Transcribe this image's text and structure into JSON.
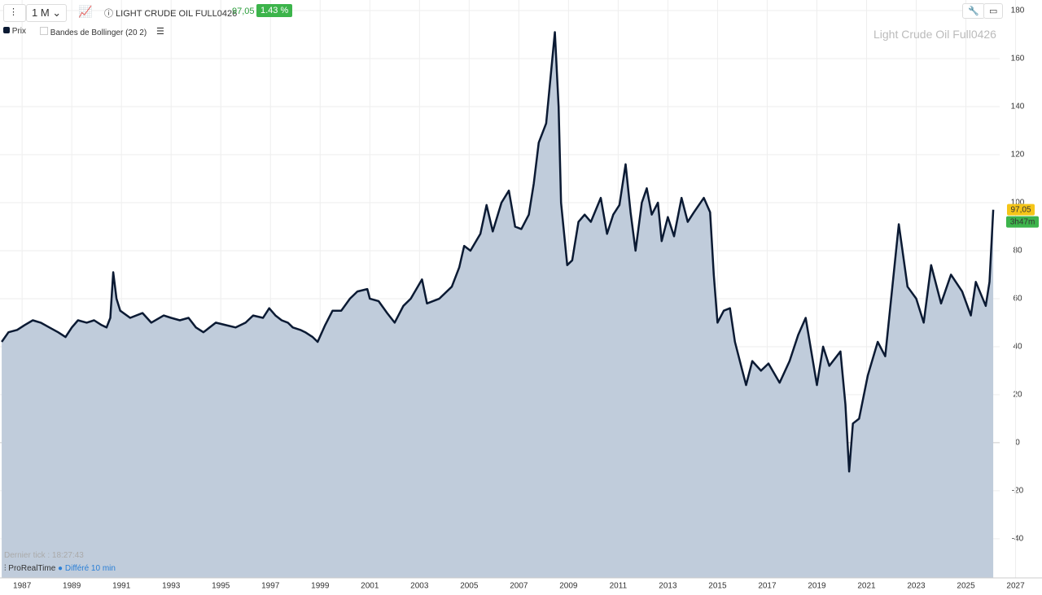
{
  "header": {
    "period": "1 M",
    "instrument": "LIGHT CRUDE OIL FULL0426",
    "price": "97,05",
    "change": "1.43 %"
  },
  "legend": {
    "indicator": "Bandes de Bollinger (20 2)"
  },
  "footer": {
    "last_tick": "Dernier tick : 18:27:43",
    "brand": "ProRealTime",
    "delay": "Différé 10 min"
  },
  "chart_data": {
    "type": "area",
    "title": "Light Crude Oil Full0426",
    "x": [
      1986.18,
      1986.45,
      1986.8,
      1987.1,
      1987.43,
      1987.75,
      1988.1,
      1988.45,
      1988.75,
      1989.0,
      1989.25,
      1989.6,
      1989.9,
      1990.2,
      1990.4,
      1990.55,
      1990.67,
      1990.8,
      1990.95,
      1991.35,
      1991.85,
      1992.2,
      1992.7,
      1993.0,
      1993.35,
      1993.7,
      1994.0,
      1994.3,
      1994.8,
      1995.2,
      1995.6,
      1996.0,
      1996.3,
      1996.7,
      1996.95,
      1997.2,
      1997.45,
      1997.7,
      1997.9,
      1998.2,
      1998.4,
      1998.7,
      1998.9,
      1999.2,
      1999.5,
      1999.85,
      2000.2,
      2000.5,
      2000.9,
      2001.0,
      2001.35,
      2001.7,
      2002.0,
      2002.35,
      2002.65,
      2003.1,
      2003.3,
      2003.8,
      2004.3,
      2004.6,
      2004.8,
      2005.05,
      2005.45,
      2005.7,
      2005.95,
      2006.3,
      2006.6,
      2006.85,
      2007.1,
      2007.4,
      2007.6,
      2007.8,
      2008.1,
      2008.35,
      2008.45,
      2008.6,
      2008.7,
      2008.95,
      2009.15,
      2009.4,
      2009.65,
      2009.9,
      2010.3,
      2010.55,
      2010.8,
      2011.05,
      2011.3,
      2011.5,
      2011.7,
      2011.95,
      2012.15,
      2012.35,
      2012.6,
      2012.75,
      2013.0,
      2013.25,
      2013.55,
      2013.8,
      2014.05,
      2014.45,
      2014.7,
      2014.85,
      2015.0,
      2015.25,
      2015.5,
      2015.7,
      2016.0,
      2016.15,
      2016.4,
      2016.75,
      2017.05,
      2017.5,
      2017.9,
      2018.25,
      2018.55,
      2019.0,
      2019.25,
      2019.5,
      2019.95,
      2020.15,
      2020.3,
      2020.45,
      2020.7,
      2021.05,
      2021.45,
      2021.75,
      2022.3,
      2022.65,
      2023.0,
      2023.3,
      2023.6,
      2024.0,
      2024.4,
      2024.85,
      2025.2,
      2025.4,
      2025.8,
      2025.95,
      2026.1
    ],
    "series": [
      {
        "name": "Prix",
        "color": "#0b1a33",
        "fill": "#c0ccdb",
        "values": [
          42,
          46,
          47,
          49,
          51,
          50,
          48,
          46,
          44,
          48,
          51,
          50,
          51,
          49,
          48,
          52,
          71,
          60,
          55,
          52,
          54,
          50,
          53,
          52,
          51,
          52,
          48,
          46,
          50,
          49,
          48,
          50,
          53,
          52,
          56,
          53,
          51,
          50,
          48,
          47,
          46,
          44,
          42,
          49,
          55,
          55,
          60,
          63,
          64,
          60,
          59,
          54,
          50,
          57,
          60,
          68,
          58,
          60,
          65,
          73,
          82,
          80,
          87,
          99,
          88,
          100,
          105,
          90,
          89,
          95,
          108,
          125,
          133,
          160,
          171,
          140,
          100,
          74,
          76,
          92,
          95,
          92,
          102,
          87,
          95,
          99,
          116,
          96,
          80,
          100,
          106,
          95,
          100,
          84,
          94,
          86,
          102,
          92,
          96,
          102,
          96,
          70,
          50,
          55,
          56,
          42,
          30,
          24,
          34,
          30,
          33,
          25,
          34,
          45,
          52,
          24,
          40,
          32,
          38,
          16,
          -12,
          8,
          10,
          28,
          42,
          36,
          91,
          65,
          60,
          50,
          74,
          58,
          70,
          63,
          53,
          67,
          57,
          67,
          97.05
        ]
      }
    ],
    "price_badge": {
      "value": 97.05,
      "label": "97,05"
    },
    "timer": "3h47m",
    "xlim": [
      1986.11,
      2027.9
    ],
    "ylim": [
      -56.3,
      184.4
    ],
    "xticks": [
      1987,
      1989,
      1991,
      1993,
      1995,
      1997,
      1999,
      2001,
      2003,
      2005,
      2007,
      2009,
      2011,
      2013,
      2015,
      2017,
      2019,
      2021,
      2023,
      2025,
      2027
    ],
    "yticks": [
      180,
      160,
      140,
      120,
      100,
      80,
      60,
      40,
      20,
      0,
      -20,
      -40
    ],
    "grid": true
  }
}
